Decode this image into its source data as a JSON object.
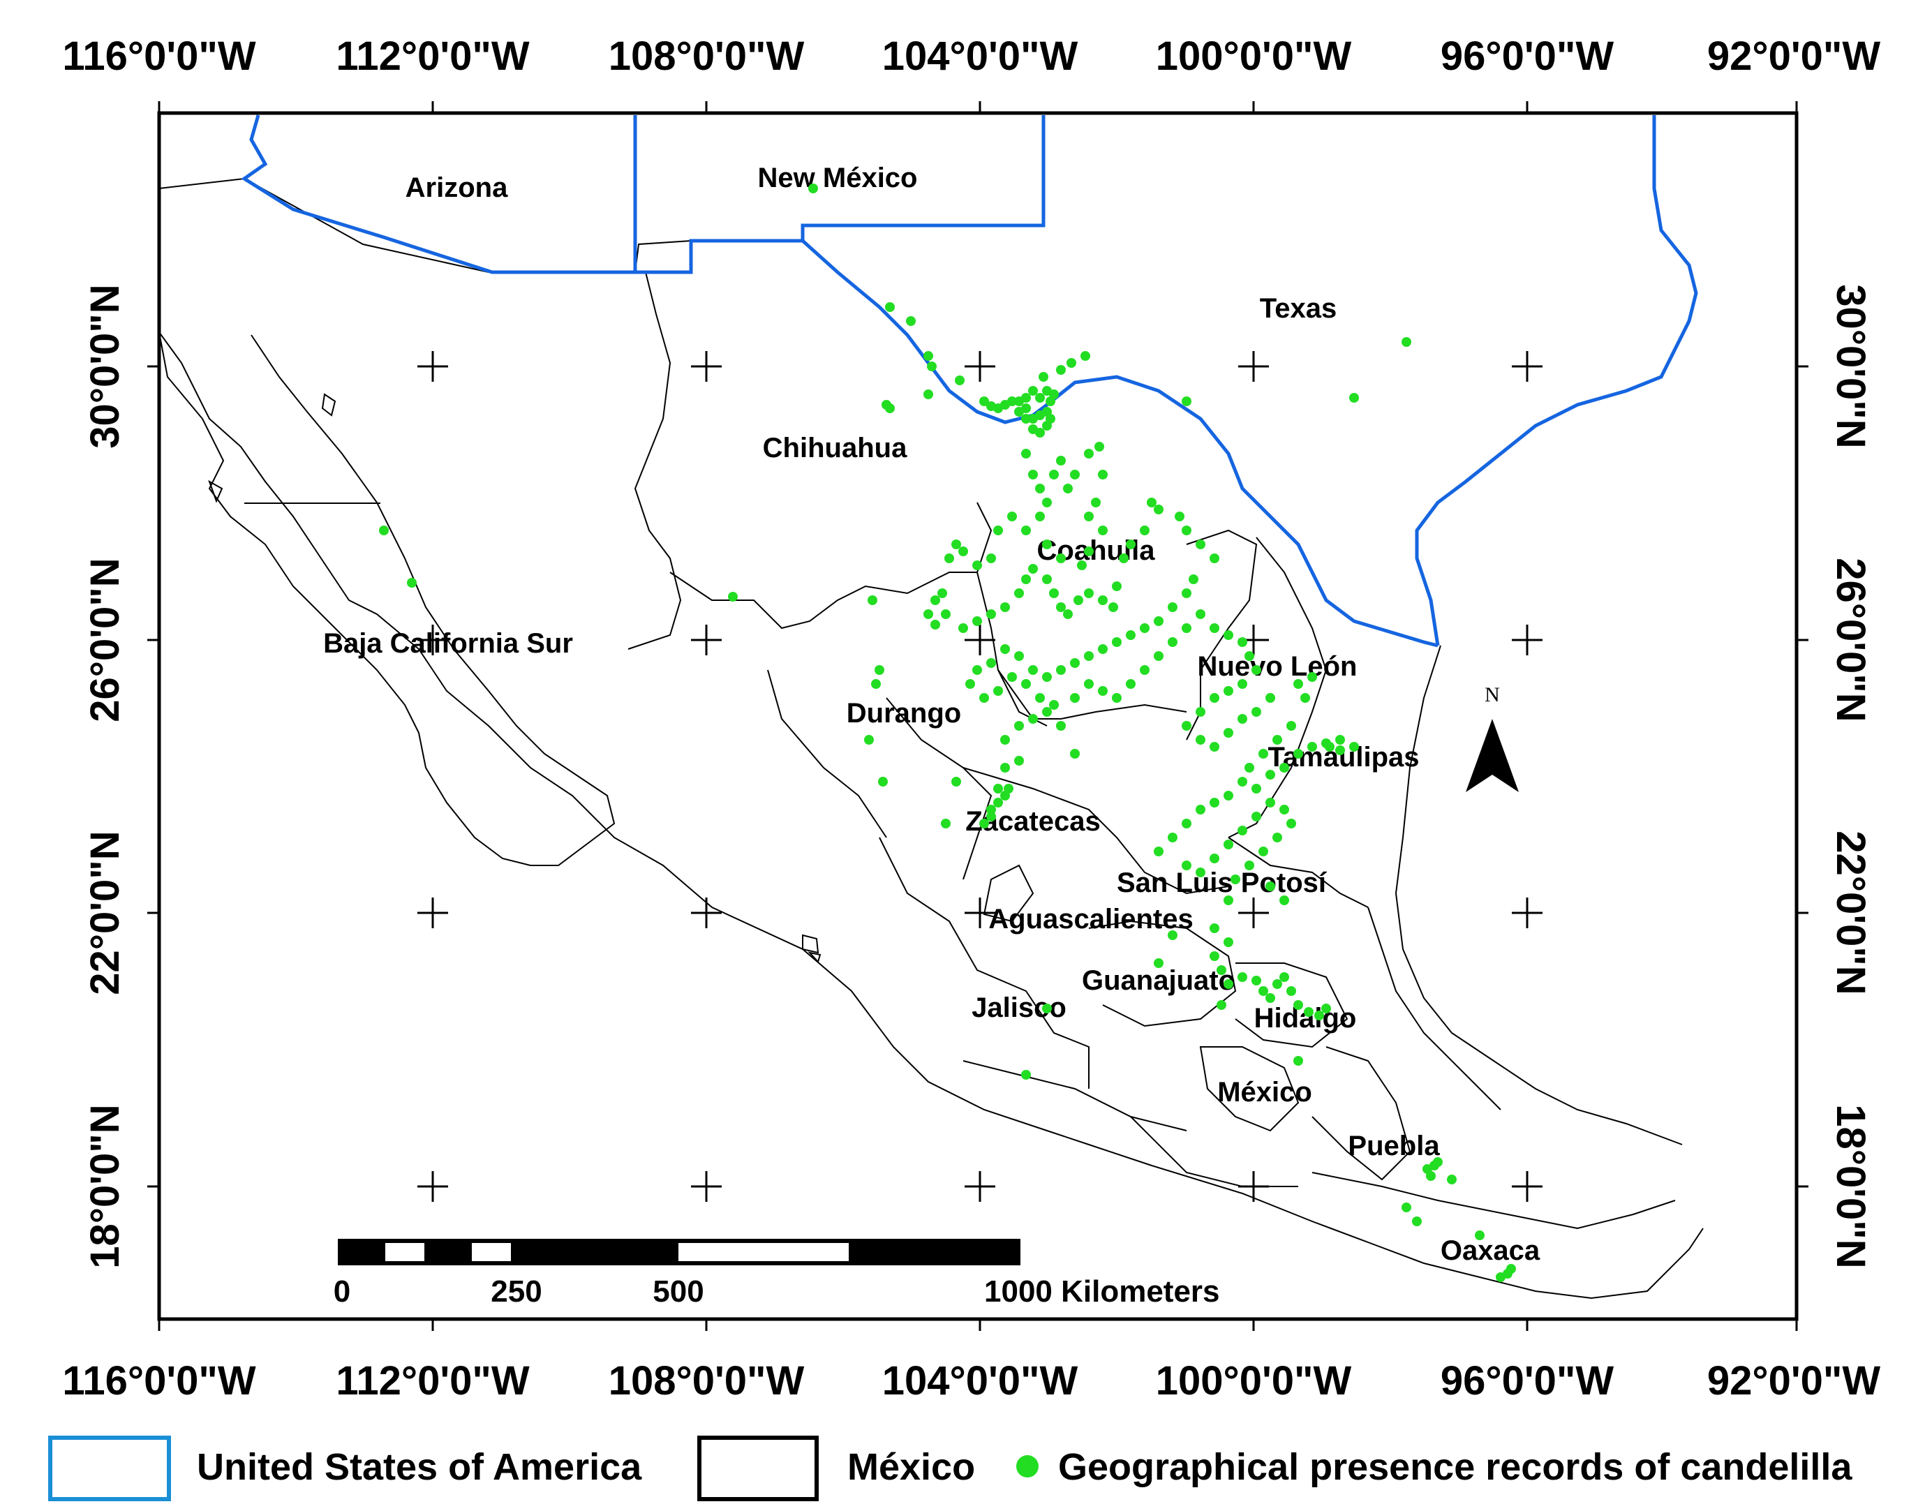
{
  "axes": {
    "longitude_labels": [
      "116°0'0\"W",
      "112°0'0\"W",
      "108°0'0\"W",
      "104°0'0\"W",
      "100°0'0\"W",
      "96°0'0\"W",
      "92°0'0\"W"
    ],
    "latitude_labels": [
      "30°0'0\"N",
      "26°0'0\"N",
      "22°0'0\"N",
      "18°0'0\"N"
    ]
  },
  "states": [
    {
      "name": "Arizona"
    },
    {
      "name": "New México"
    },
    {
      "name": "Texas"
    },
    {
      "name": "Chihuahua"
    },
    {
      "name": "Coahuila"
    },
    {
      "name": "Baja California Sur"
    },
    {
      "name": "Nuevo León"
    },
    {
      "name": "Durango"
    },
    {
      "name": "Tamaulipas"
    },
    {
      "name": "Zacatecas"
    },
    {
      "name": "San Luis Potosí"
    },
    {
      "name": "Aguascalientes"
    },
    {
      "name": "Guanajuato"
    },
    {
      "name": "Jalisco"
    },
    {
      "name": "Hidalgo"
    },
    {
      "name": "México"
    },
    {
      "name": "Puebla"
    },
    {
      "name": "Oaxaca"
    }
  ],
  "north_arrow": {
    "label": "N"
  },
  "scale_bar": {
    "labels": [
      "0",
      "250",
      "500",
      "1000 Kilometers"
    ]
  },
  "legend": {
    "usa": {
      "label": "United States of America",
      "color": "#1a8fd6"
    },
    "mexico": {
      "label": "México",
      "color": "#000000"
    },
    "records": {
      "label": "Geographical presence records of candelilla",
      "color": "#22dd22"
    }
  }
}
